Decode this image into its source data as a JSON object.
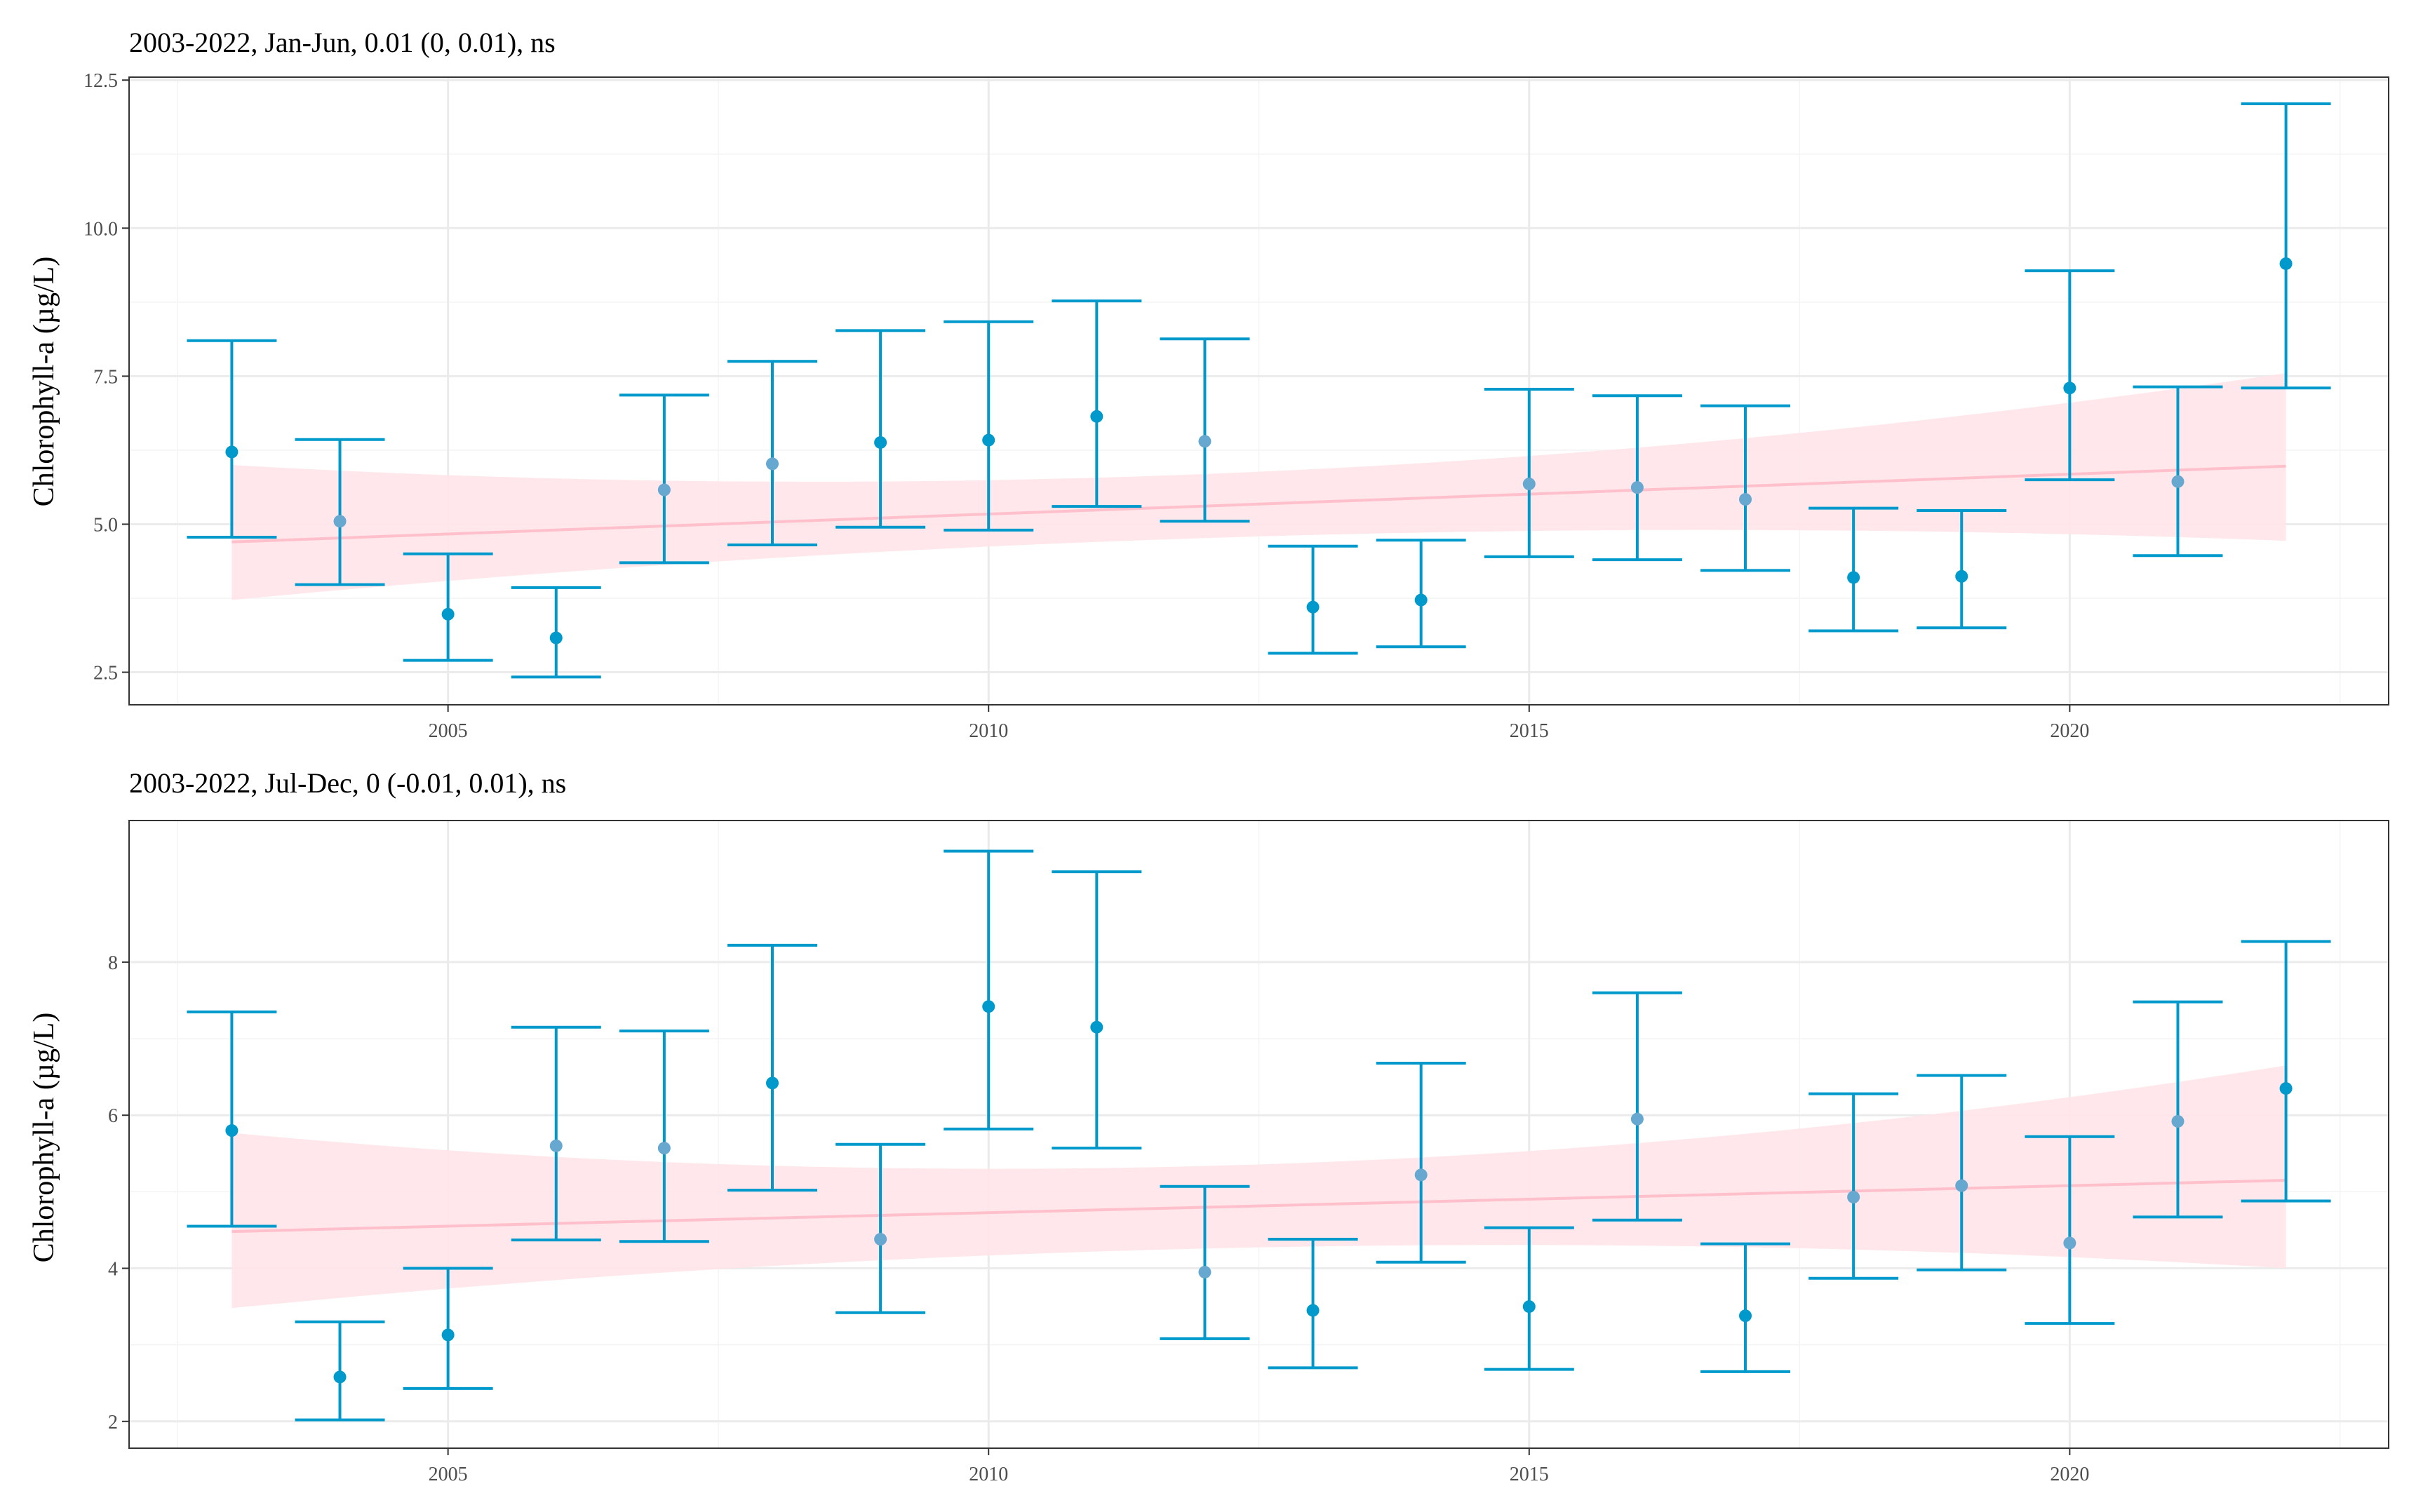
{
  "chart_data": [
    {
      "type": "scatter",
      "title": "2003-2022, Jan-Jun, 0.01 (0, 0.01), ns",
      "xlabel": "",
      "ylabel": "Chlorophyll-a (µg/L)",
      "xlim": [
        2002.05,
        2022.95
      ],
      "ylim": [
        1.95,
        12.55
      ],
      "x_ticks": [
        2005,
        2010,
        2015,
        2020
      ],
      "x_tick_labels": [
        "2005",
        "2010",
        "2015",
        "2020"
      ],
      "y_ticks": [
        2.5,
        5.0,
        7.5,
        10.0,
        12.5
      ],
      "y_tick_labels": [
        "2.5",
        "5.0",
        "7.5",
        "10.0",
        "12.5"
      ],
      "grid": true,
      "colors": {
        "point": "#0099CC",
        "point_light": "#66A8D0",
        "trend": "#FFC0CB",
        "band": "#FFE4E9"
      },
      "x": [
        2003,
        2004,
        2005,
        2006,
        2007,
        2008,
        2009,
        2010,
        2011,
        2012,
        2013,
        2014,
        2015,
        2016,
        2017,
        2018,
        2019,
        2020,
        2021,
        2022
      ],
      "y": [
        6.22,
        5.05,
        3.48,
        3.08,
        5.58,
        6.02,
        6.38,
        6.42,
        6.82,
        6.4,
        3.6,
        3.72,
        5.68,
        5.62,
        5.42,
        4.1,
        4.12,
        7.3,
        5.72,
        9.4
      ],
      "lower": [
        4.78,
        3.98,
        2.7,
        2.42,
        4.35,
        4.65,
        4.95,
        4.9,
        5.3,
        5.05,
        2.82,
        2.93,
        4.45,
        4.4,
        4.22,
        3.2,
        3.25,
        5.75,
        4.47,
        7.3
      ],
      "upper": [
        8.1,
        6.43,
        4.5,
        3.93,
        7.18,
        7.75,
        8.27,
        8.42,
        8.77,
        8.13,
        4.63,
        4.73,
        7.28,
        7.17,
        7.0,
        5.27,
        5.23,
        9.28,
        7.32,
        12.1
      ],
      "trend": {
        "x": [
          2003,
          2022
        ],
        "y": [
          4.7,
          5.98
        ]
      },
      "band": {
        "x": [
          2003,
          2022
        ],
        "lower": [
          3.72,
          4.72
        ],
        "upper": [
          6.0,
          7.55
        ]
      }
    },
    {
      "type": "scatter",
      "title": "2003-2022, Jul-Dec, 0 (-0.01, 0.01), ns",
      "xlabel": "",
      "ylabel": "Chlorophyll-a (µg/L)",
      "xlim": [
        2002.05,
        2022.95
      ],
      "ylim": [
        1.65,
        9.85
      ],
      "x_ticks": [
        2005,
        2010,
        2015,
        2020
      ],
      "x_tick_labels": [
        "2005",
        "2010",
        "2015",
        "2020"
      ],
      "y_ticks": [
        2,
        4,
        6,
        8
      ],
      "y_tick_labels": [
        "2",
        "4",
        "6",
        "8"
      ],
      "grid": true,
      "colors": {
        "point": "#0099CC",
        "point_light": "#66A8D0",
        "trend": "#FFC0CB",
        "band": "#FFE4E9"
      },
      "x": [
        2003,
        2004,
        2005,
        2006,
        2007,
        2008,
        2009,
        2010,
        2011,
        2012,
        2013,
        2014,
        2015,
        2016,
        2017,
        2018,
        2019,
        2020,
        2021,
        2022
      ],
      "y": [
        5.8,
        2.58,
        3.13,
        5.6,
        5.57,
        6.42,
        4.38,
        7.42,
        7.15,
        3.95,
        3.45,
        5.22,
        3.5,
        5.95,
        3.38,
        4.93,
        5.08,
        4.33,
        5.92,
        6.35
      ],
      "lower": [
        4.55,
        2.02,
        2.43,
        4.37,
        4.35,
        5.02,
        3.42,
        5.82,
        5.57,
        3.08,
        2.7,
        4.08,
        2.68,
        4.63,
        2.65,
        3.87,
        3.98,
        3.28,
        4.67,
        4.88
      ],
      "upper": [
        7.35,
        3.3,
        4.0,
        7.15,
        7.1,
        8.22,
        5.62,
        9.45,
        9.18,
        5.07,
        4.38,
        6.68,
        4.53,
        7.6,
        4.32,
        6.28,
        6.52,
        5.72,
        7.48,
        8.27
      ],
      "trend": {
        "x": [
          2003,
          2022
        ],
        "y": [
          4.48,
          5.15
        ]
      },
      "band": {
        "x": [
          2003,
          2022
        ],
        "lower": [
          3.48,
          4.0
        ],
        "upper": [
          5.77,
          6.65
        ]
      }
    }
  ]
}
